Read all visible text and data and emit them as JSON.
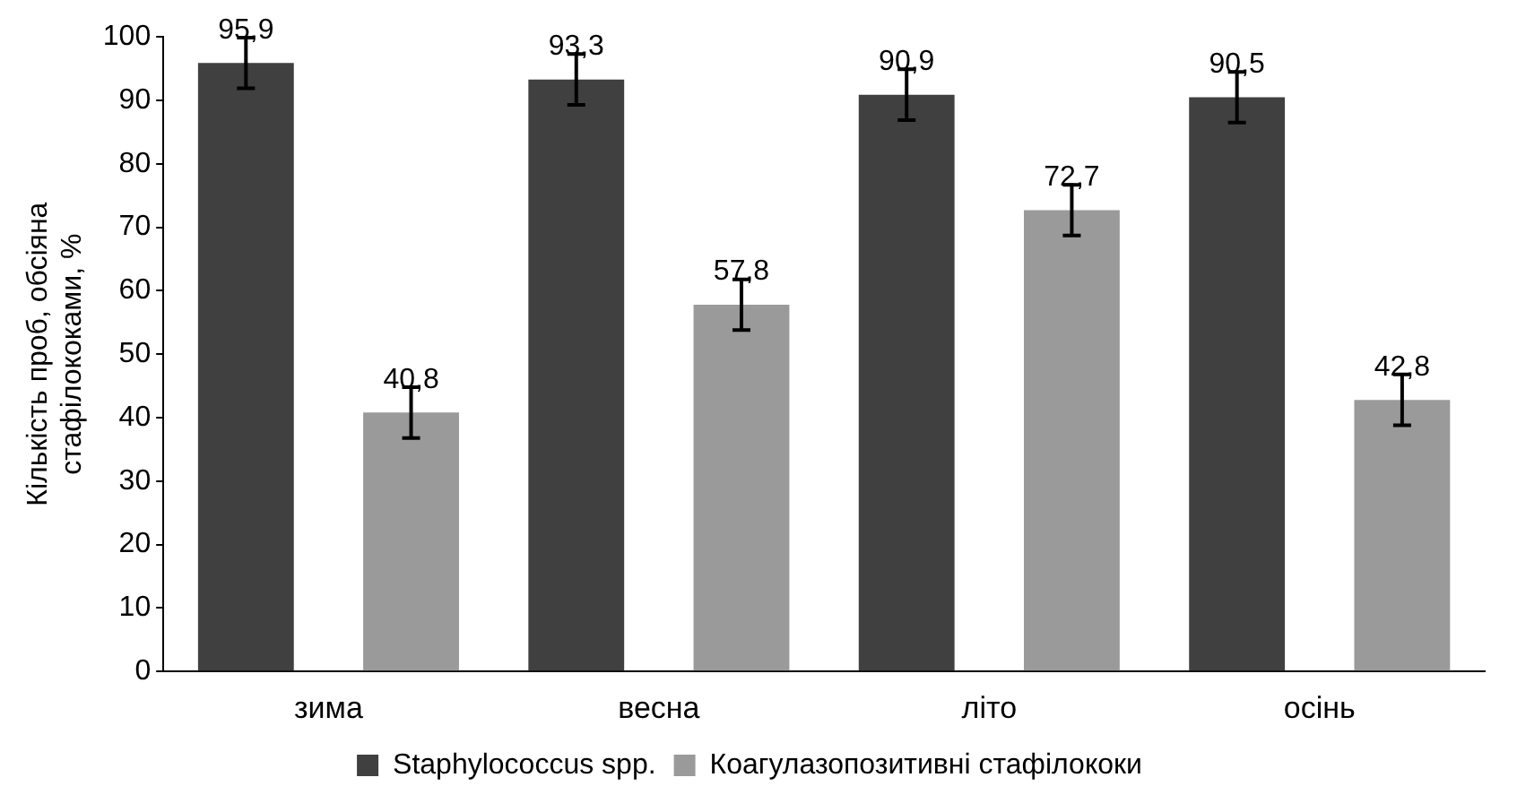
{
  "chart_data": {
    "type": "bar",
    "ylabel": "Кількість проб, обсіяна стафілококами, %",
    "categories": [
      "зима",
      "весна",
      "літо",
      "осінь"
    ],
    "series": [
      {
        "name": "Staphylococcus spp.",
        "color": "#404040",
        "values": [
          95.9,
          93.3,
          90.9,
          90.5
        ],
        "value_labels": [
          "95,9",
          "93,3",
          "90,9",
          "90,5"
        ],
        "errors": [
          4,
          4,
          4,
          4
        ]
      },
      {
        "name": "Коагулазопозитивні стафілококи",
        "color": "#9a9a9a",
        "values": [
          40.8,
          57.8,
          72.7,
          42.8
        ],
        "value_labels": [
          "40,8",
          "57,8",
          "72,7",
          "42,8"
        ],
        "errors": [
          4,
          4,
          4,
          4
        ]
      }
    ],
    "ylim": [
      0,
      100
    ],
    "yticks": [
      0,
      10,
      20,
      30,
      40,
      50,
      60,
      70,
      80,
      90,
      100
    ],
    "grid": false,
    "legend": "bottom"
  }
}
